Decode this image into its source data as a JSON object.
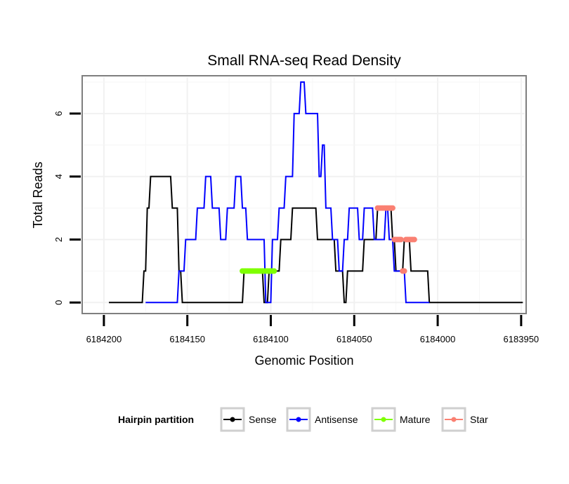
{
  "chart_data": {
    "type": "line",
    "title": "Small RNA-seq Read Density",
    "xlabel": "Genomic Position",
    "ylabel": "Total Reads",
    "xlim": [
      6184213,
      6183947
    ],
    "x_reversed": true,
    "ylim": [
      -0.35,
      7.2
    ],
    "xticks": [
      6184200,
      6184150,
      6184100,
      6184050,
      6184000,
      6183950
    ],
    "xtick_labels": [
      "6184200",
      "6184150",
      "6184100",
      "6184050",
      "6184000",
      "6183950"
    ],
    "yticks": [
      0,
      2,
      4,
      6
    ],
    "ytick_labels": [
      "0",
      "2",
      "4",
      "6"
    ],
    "grid": true,
    "legend": {
      "title": "Hairpin partition",
      "placement": "bottom",
      "entries": [
        "Sense",
        "Antisense",
        "Mature",
        "Star"
      ]
    },
    "series": [
      {
        "name": "Sense",
        "color": "#000000",
        "mode": "line",
        "x": [
          6184197,
          6184177,
          6184176,
          6184175,
          6184174,
          6184173,
          6184172,
          6184160,
          6184159,
          6184156,
          6184155,
          6184154,
          6184153,
          6184117,
          6184116,
          6184105,
          6184104,
          6184102,
          6184101,
          6184095,
          6184094,
          6184088,
          6184087,
          6184086,
          6184085,
          6184073,
          6184072,
          6184062,
          6184061,
          6184057,
          6184056,
          6184055,
          6184054,
          6184045,
          6184044,
          6184037,
          6184036,
          6184028,
          6184027,
          6184026,
          6184025,
          6184021,
          6184020,
          6184017,
          6184016,
          6184015,
          6184014,
          6184006,
          6184005,
          6183949
        ],
        "y": [
          0,
          0,
          1,
          1,
          3,
          3,
          4,
          4,
          3,
          3,
          1,
          1,
          0,
          0,
          1,
          1,
          0,
          0,
          1,
          1,
          2,
          2,
          3,
          3,
          3,
          3,
          2,
          2,
          1,
          1,
          0,
          0,
          1,
          1,
          2,
          2,
          3,
          3,
          2,
          2,
          1,
          1,
          2,
          2,
          1,
          1,
          1,
          1,
          0,
          0
        ]
      },
      {
        "name": "Antisense",
        "color": "#0000ff",
        "mode": "line",
        "x": [
          6184175,
          6184156,
          6184155,
          6184152,
          6184151,
          6184145,
          6184144,
          6184140,
          6184139,
          6184136,
          6184135,
          6184131,
          6184130,
          6184127,
          6184126,
          6184122,
          6184121,
          6184118,
          6184117,
          6184115,
          6184114,
          6184104,
          6184103,
          6184100,
          6184099,
          6184096,
          6184095,
          6184092,
          6184091,
          6184087,
          6184086,
          6184083,
          6184082,
          6184080,
          6184079,
          6184072,
          6184071,
          6184070,
          6184069,
          6184068,
          6184067,
          6184064,
          6184063,
          6184060,
          6184059,
          6184057,
          6184056,
          6184054,
          6184053,
          6184048,
          6184047,
          6184045,
          6184044,
          6184039,
          6184038,
          6184032,
          6184031,
          6184030,
          6184029,
          6184027,
          6184026,
          6184020,
          6184019,
          6184005
        ],
        "y": [
          0,
          0,
          1,
          1,
          2,
          2,
          3,
          3,
          4,
          4,
          3,
          3,
          2,
          2,
          3,
          3,
          4,
          4,
          3,
          3,
          2,
          2,
          0,
          0,
          2,
          2,
          3,
          3,
          4,
          4,
          6,
          6,
          7,
          7,
          6,
          6,
          4,
          4,
          5,
          5,
          3,
          3,
          2,
          2,
          1,
          1,
          2,
          2,
          3,
          3,
          2,
          2,
          3,
          3,
          2,
          2,
          3,
          3,
          2,
          2,
          1,
          1,
          0,
          0
        ]
      },
      {
        "name": "Mature",
        "color": "#7fff00",
        "mode": "points",
        "x": [
          6184117,
          6184116,
          6184115,
          6184114,
          6184113,
          6184112,
          6184111,
          6184110,
          6184109,
          6184108,
          6184107,
          6184106,
          6184105,
          6184104,
          6184103,
          6184102,
          6184101,
          6184100,
          6184099,
          6184098
        ],
        "y": [
          1,
          1,
          1,
          1,
          1,
          1,
          1,
          1,
          1,
          1,
          1,
          1,
          1,
          1,
          1,
          1,
          1,
          1,
          1,
          1
        ]
      },
      {
        "name": "Star",
        "color": "#fa8072",
        "mode": "points",
        "x": [
          6184036,
          6184035,
          6184034,
          6184033,
          6184032,
          6184031,
          6184030,
          6184029,
          6184028,
          6184027,
          6184026,
          6184025,
          6184024,
          6184023,
          6184022,
          6184021,
          6184020,
          6184019,
          6184018,
          6184017,
          6184016,
          6184015,
          6184014
        ],
        "y": [
          3,
          3,
          3,
          3,
          3,
          3,
          3,
          3,
          3,
          3,
          2,
          2,
          2,
          2,
          2,
          1,
          1,
          2,
          2,
          2,
          2,
          2,
          2
        ]
      }
    ]
  }
}
